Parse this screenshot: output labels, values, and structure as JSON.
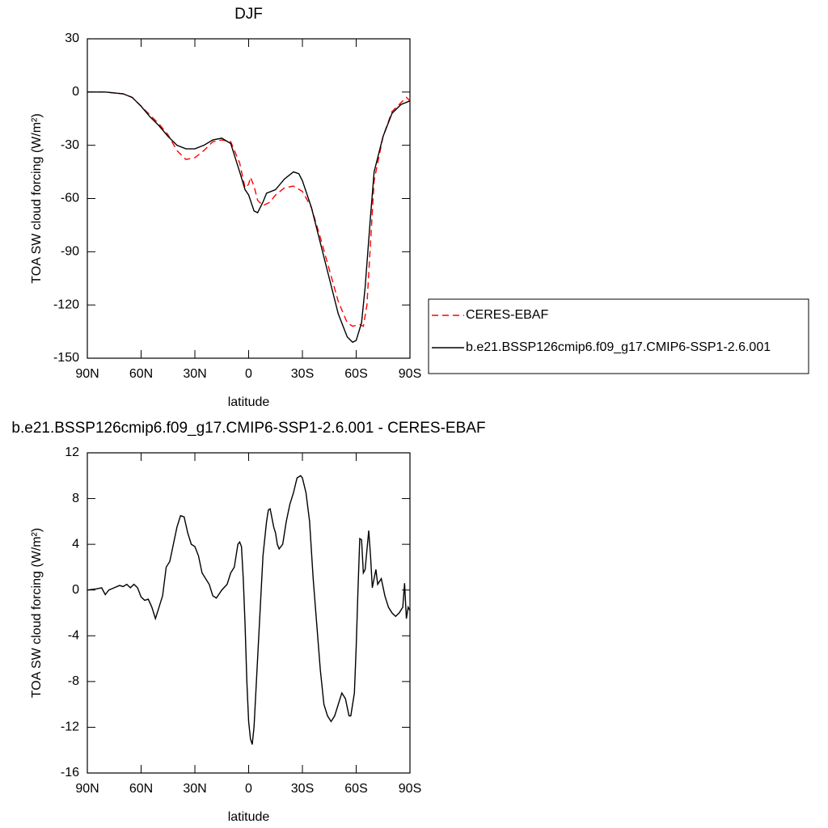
{
  "chart_data": [
    {
      "type": "line",
      "title": "DJF",
      "x_label": "latitude",
      "y_label": "TOA SW cloud forcing (W/m²)",
      "xlim": [
        90,
        -90
      ],
      "xticks": [
        {
          "value": 90,
          "label": "90N"
        },
        {
          "value": 60,
          "label": "60N"
        },
        {
          "value": 30,
          "label": "30N"
        },
        {
          "value": 0,
          "label": "0"
        },
        {
          "value": -30,
          "label": "30S"
        },
        {
          "value": -60,
          "label": "60S"
        },
        {
          "value": -90,
          "label": "90S"
        }
      ],
      "ylim": [
        -150,
        30
      ],
      "yticks": [
        -150,
        -120,
        -90,
        -60,
        -30,
        0,
        30
      ],
      "legend": "outside-right",
      "series": [
        {
          "name": "CERES-EBAF",
          "color": "#ff0000",
          "linestyle": "dashed",
          "x": [
            90,
            80,
            70,
            65,
            60,
            55,
            50,
            45,
            40,
            35,
            30,
            25,
            20,
            15,
            10,
            5,
            2,
            0,
            -1,
            -3,
            -5,
            -8,
            -12,
            -15,
            -20,
            -25,
            -30,
            -35,
            -40,
            -45,
            -50,
            -55,
            -58,
            -62,
            -64,
            -66,
            -68,
            -70,
            -75,
            -80,
            -85,
            -88,
            -90
          ],
          "values": [
            0,
            0,
            -1,
            -3,
            -8,
            -13,
            -18,
            -24,
            -33,
            -38,
            -37,
            -33,
            -28,
            -27,
            -28,
            -40,
            -54,
            -52,
            -48,
            -53,
            -61,
            -64,
            -62,
            -58,
            -54,
            -53,
            -56,
            -65,
            -82,
            -100,
            -118,
            -130,
            -132,
            -131,
            -132,
            -120,
            -85,
            -50,
            -25,
            -11,
            -6,
            -3,
            -5
          ]
        },
        {
          "name": "b.e21.BSSP126cmip6.f09_g17.CMIP6-SSP1-2.6.001",
          "color": "#000000",
          "linestyle": "solid",
          "x": [
            90,
            85,
            80,
            75,
            70,
            65,
            60,
            55,
            50,
            45,
            40,
            35,
            30,
            25,
            20,
            15,
            10,
            5,
            2,
            0,
            -3,
            -5,
            -8,
            -10,
            -15,
            -20,
            -25,
            -28,
            -30,
            -35,
            -40,
            -45,
            -50,
            -55,
            -58,
            -60,
            -63,
            -65,
            -68,
            -70,
            -75,
            -80,
            -85,
            -90
          ],
          "values": [
            0,
            0,
            0,
            -0.5,
            -1,
            -3,
            -8,
            -14,
            -19,
            -25,
            -30,
            -32,
            -32,
            -30,
            -27,
            -26,
            -29,
            -45,
            -55,
            -58,
            -67,
            -68,
            -62,
            -57,
            -55,
            -49,
            -45,
            -46,
            -50,
            -65,
            -85,
            -105,
            -125,
            -138,
            -141,
            -140,
            -130,
            -110,
            -70,
            -45,
            -25,
            -12,
            -7,
            -5
          ]
        }
      ]
    },
    {
      "type": "line",
      "title": "b.e21.BSSP126cmip6.f09_g17.CMIP6-SSP1-2.6.001 - CERES-EBAF",
      "x_label": "latitude",
      "y_label": "TOA SW cloud forcing (W/m²)",
      "xlim": [
        90,
        -90
      ],
      "xticks": [
        {
          "value": 90,
          "label": "90N"
        },
        {
          "value": 60,
          "label": "60N"
        },
        {
          "value": 30,
          "label": "30N"
        },
        {
          "value": 0,
          "label": "0"
        },
        {
          "value": -30,
          "label": "30S"
        },
        {
          "value": -60,
          "label": "60S"
        },
        {
          "value": -90,
          "label": "90S"
        }
      ],
      "ylim": [
        -16,
        12
      ],
      "yticks": [
        -16,
        -12,
        -8,
        -4,
        0,
        4,
        8,
        12
      ],
      "series": [
        {
          "color": "#000000",
          "linestyle": "solid",
          "x": [
            90,
            85,
            82,
            80,
            78,
            75,
            72,
            70,
            68,
            66,
            64,
            62,
            60,
            58,
            56,
            54,
            52,
            50,
            48,
            46,
            44,
            42,
            40,
            38,
            36,
            34,
            32,
            30,
            28,
            26,
            24,
            22,
            20,
            18,
            15,
            12,
            10,
            8,
            6,
            5,
            4,
            3,
            2,
            1,
            0,
            -1,
            -2,
            -3,
            -5,
            -7,
            -8,
            -10,
            -11,
            -12,
            -14,
            -15,
            -16,
            -17,
            -19,
            -21,
            -23,
            -25,
            -27,
            -29,
            -30,
            -32,
            -34,
            -36,
            -38,
            -40,
            -42,
            -44,
            -46,
            -48,
            -50,
            -52,
            -54,
            -56,
            -57,
            -59,
            -60,
            -61,
            -62,
            -63,
            -64,
            -65,
            -67,
            -68,
            -69,
            -70,
            -71,
            -72,
            -74,
            -76,
            -78,
            -80,
            -82,
            -84,
            -86,
            -87,
            -88,
            -89,
            -90
          ],
          "values": [
            0,
            0.1,
            0.2,
            -0.4,
            0,
            0.2,
            0.4,
            0.3,
            0.5,
            0.2,
            0.5,
            0.2,
            -0.6,
            -0.9,
            -0.8,
            -1.5,
            -2.5,
            -1.5,
            -0.5,
            2,
            2.5,
            4,
            5.5,
            6.5,
            6.4,
            5,
            4,
            3.8,
            3,
            1.5,
            1,
            0.5,
            -0.5,
            -0.7,
            0,
            0.5,
            1.5,
            2,
            4,
            4.2,
            3.8,
            1,
            -3,
            -8,
            -11.5,
            -13,
            -13.5,
            -12,
            -6,
            0,
            3,
            6,
            7,
            7.1,
            5.5,
            5,
            4,
            3.6,
            4,
            6,
            7.5,
            8.5,
            9.8,
            10,
            9.8,
            8.5,
            6,
            1,
            -3,
            -7,
            -10,
            -11,
            -11.5,
            -11,
            -10,
            -9,
            -9.5,
            -11,
            -11,
            -9,
            -5,
            0,
            4.5,
            4.4,
            1.5,
            1.8,
            5.2,
            3,
            0.2,
            1,
            1.8,
            0.5,
            1,
            -0.5,
            -1.5,
            -2,
            -2.3,
            -2,
            -1.5,
            0.6,
            -2.5,
            -1.5,
            -1.8
          ]
        }
      ]
    }
  ]
}
